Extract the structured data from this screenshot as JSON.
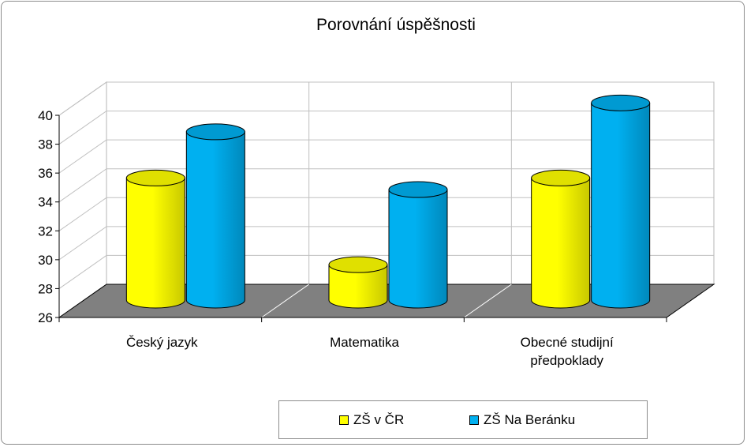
{
  "chart_data": {
    "type": "bar",
    "title": "Porovnání úspěšnosti",
    "categories": [
      "Český jazyk",
      "Matematika",
      "Obecné studijní předpoklady"
    ],
    "category_lines": [
      [
        "Český jazyk"
      ],
      [
        "Matematika"
      ],
      [
        "Obecné studijní",
        "předpoklady"
      ]
    ],
    "series": [
      {
        "name": "ZŠ v ČR",
        "values": [
          35.0,
          29.0,
          35.0
        ],
        "color": "#FFFF00"
      },
      {
        "name": "ZŠ Na Beránku",
        "values": [
          38.2,
          34.2,
          40.2
        ],
        "color": "#00B0F0"
      }
    ],
    "ylim": [
      26,
      40
    ],
    "yticks": [
      "26",
      "28",
      "30",
      "32",
      "34",
      "36",
      "38",
      "40"
    ],
    "xlabel": "",
    "ylabel": "",
    "grid": true,
    "legend_position": "bottom",
    "style": "3d-cylinder",
    "floor_color": "#808080"
  }
}
